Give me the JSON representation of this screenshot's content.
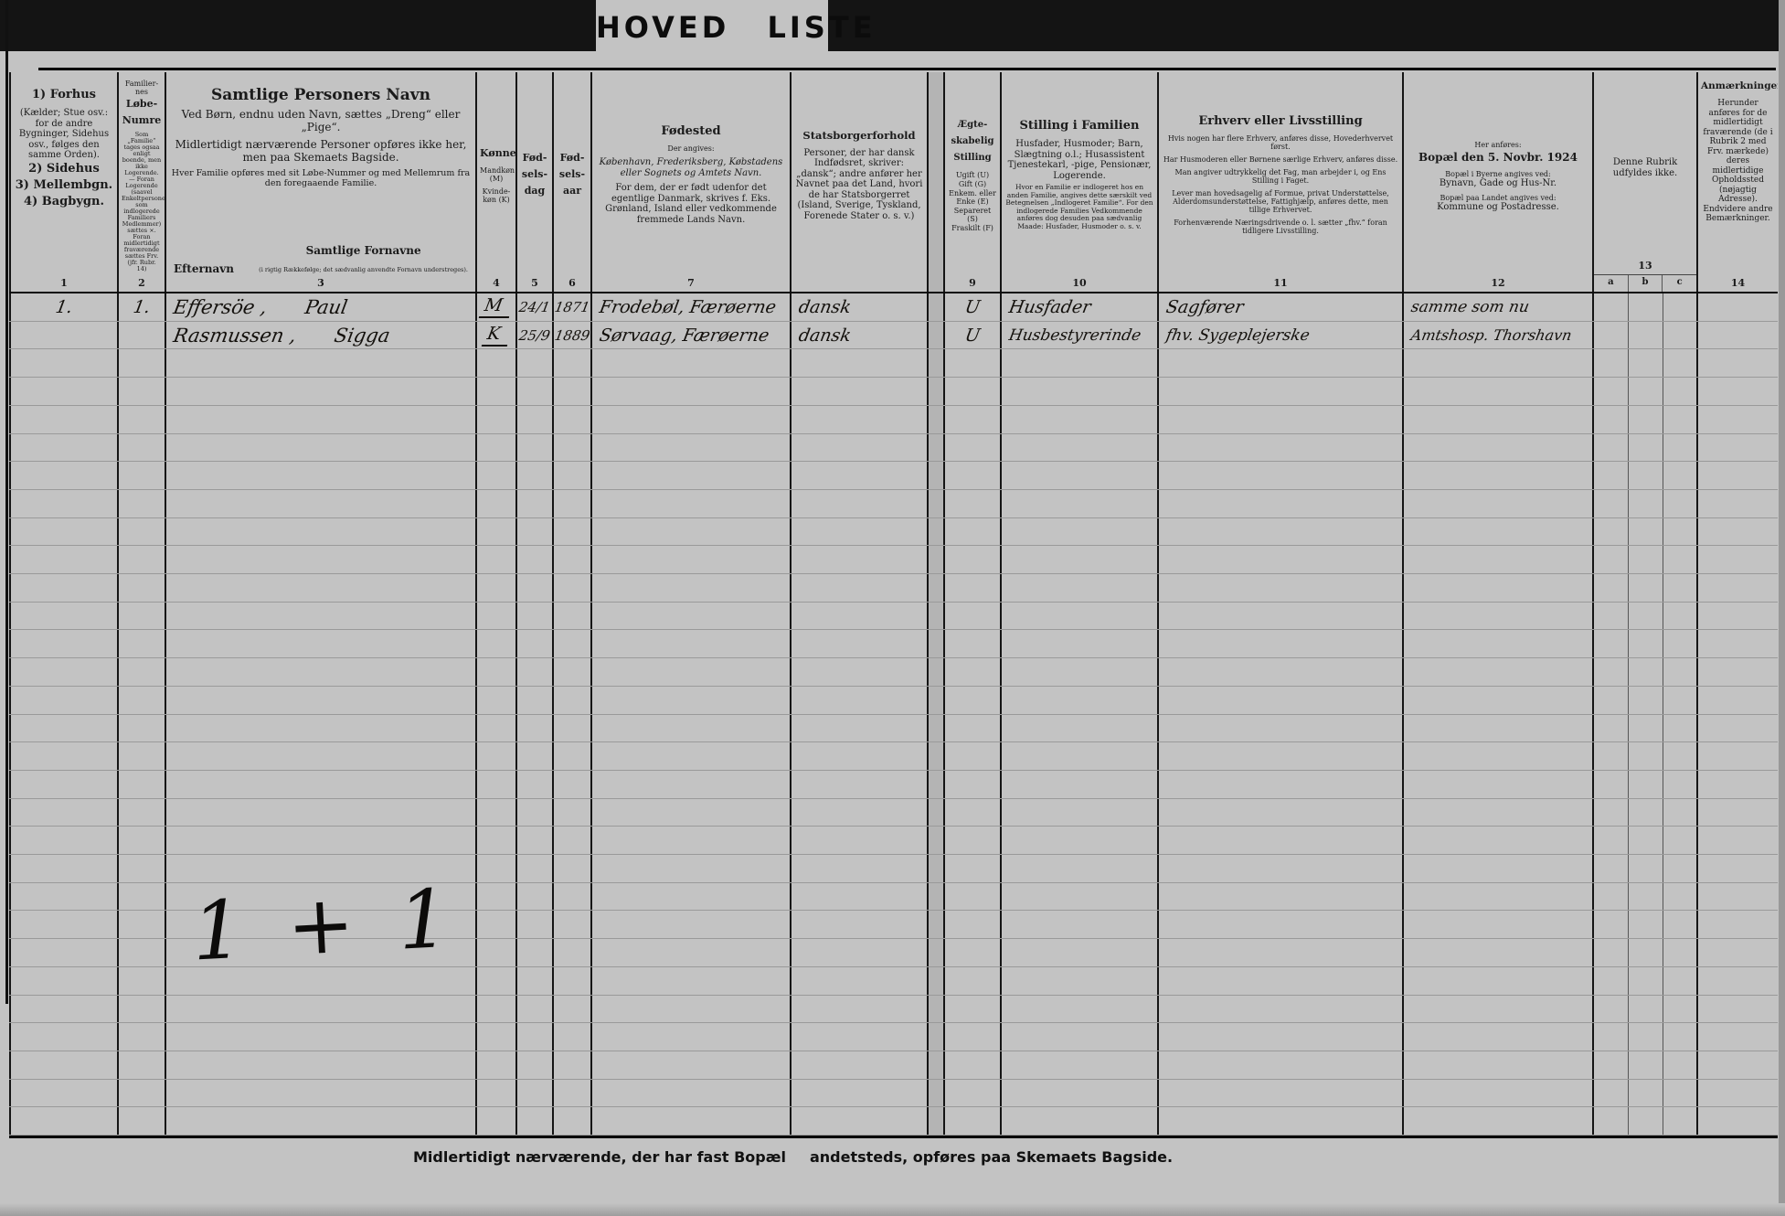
{
  "title": "HOVED LISTE",
  "footer": {
    "note1": "Midlertidigt nærværende, der har fast Bopæl",
    "note2": "andetsteds, opføres paa Skemaets Bagside.",
    "tally": "1 + 1"
  },
  "header": {
    "c1": {
      "num": "1",
      "l1": "1) Forhus",
      "body": "(Kælder; Stue osv.: for de andre Bygninger, Sidehus osv., følges den samme Orden).",
      "l2": "2) Sidehus",
      "l3": "3) Mellembgn.",
      "l4": "4) Bagbygn."
    },
    "c2": {
      "num": "2",
      "t1": "Familier-",
      "t2": "nes",
      "t3": "Løbe-",
      "t4": "Numre",
      "note": "Som „Familie“ tages ogsaa enligt boende, men ikke Logerende. — Foran Logerende (saavel Enkeltpersoner som indlogerede Familiers Medlemmer) sættes ×. Foran midlertidigt fraværende sættes Frv. (jfr. Rubr. 14)"
    },
    "c3": {
      "num": "3",
      "title": "Samtlige Personers Navn",
      "p1": "Ved Børn, endnu uden Navn, sættes „Dreng“ eller „Pige“.",
      "p2": "Midlertidigt nærværende Personer opføres ikke her, men paa Skemaets Bagside.",
      "p3": "Hver Familie opføres med sit Løbe-Nummer og med Mellemrum fra den foregaaende Familie.",
      "sub1": "Efternavn",
      "sub2": "Samtlige Fornavne",
      "sub2note": "(i rigtig Rækkefølge; det sædvanlig anvendte Fornavn understreges)."
    },
    "c4": {
      "num": "4",
      "title": "Kønnet",
      "p1": "Mandkøn (M)",
      "p2": "Kvinde-køn (K)"
    },
    "c5": {
      "num": "5",
      "t1": "Fød-",
      "t2": "sels-",
      "t3": "dag"
    },
    "c6": {
      "num": "6",
      "t1": "Fød-",
      "t2": "sels-",
      "t3": "aar"
    },
    "c7": {
      "num": "7",
      "title": "Fødested",
      "p0": "Der angives:",
      "p1": "København, Frederiksberg, Købstadens eller Sognets og Amtets Navn.",
      "p2": "For dem, der er født udenfor det egentlige Danmark, skrives f. Eks. Grønland, Island eller vedkommende fremmede Lands Navn."
    },
    "c8": {
      "num": "8",
      "title": "Statsborgerforhold",
      "p1": "Personer, der har dansk Indfødsret, skriver: „dansk“; andre anfører her Navnet paa det Land, hvori de har Statsborgerret (Island, Sverige, Tyskland, Forenede Stater o. s. v.)"
    },
    "c9": {
      "num": "9",
      "t1": "Ægte-",
      "t2": "skabelig",
      "t3": "Stilling",
      "p1": "Ugift (U)",
      "p2": "Gift (G)",
      "p3": "Enkem. eller Enke (E)",
      "p4": "Separeret (S)",
      "p5": "Fraskilt (F)"
    },
    "c10": {
      "num": "10",
      "title": "Stilling i Familien",
      "p1": "Husfader, Husmoder; Barn, Slægtning o.l.; Husassistent Tjenestekarl, -pige, Pensionær, Logerende.",
      "p2": "Hvor en Familie er indlogeret hos en anden Familie, angives dette særskilt ved Betegnelsen „Indlogeret Familie“. For den indlogerede Families Vedkommende anføres dog desuden paa sædvanlig Maade: Husfader, Husmoder o. s. v."
    },
    "c11": {
      "num": "11",
      "title": "Erhverv eller Livsstilling",
      "p1": "Hvis nogen har flere Erhverv, anføres disse, Hovederhvervet først.",
      "p2": "Har Husmoderen eller Børnene særlige Erhverv, anføres disse.",
      "p3": "Man angiver udtrykkelig det Fag, man arbejder i, og Ens Stilling i Faget.",
      "p4": "Lever man hovedsagelig af Formue, privat Understøttelse, Alderdomsunderstøttelse, Fattighjælp, anføres dette, men tillige Erhvervet.",
      "p5": "Forhenværende Næringsdrivende o. l. sætter „fhv.“ foran tidligere Livsstilling."
    },
    "c12": {
      "num": "12",
      "p0": "Her anføres:",
      "title": "Bopæl den 5. Novbr. 1924",
      "p1": "Bopæl i Byerne angives ved:",
      "p2": "Bynavn, Gade og Hus-Nr.",
      "p3": "Bopæl paa Landet angives ved:",
      "p4": "Kommune og Postadresse."
    },
    "c13": {
      "num": "13",
      "p1": "Denne Rubrik udfyldes ikke.",
      "a": "a",
      "b": "b",
      "c": "c"
    },
    "c14": {
      "num": "14",
      "title": "Anmærkninger",
      "p1": "Herunder anføres for de midlertidigt fraværende (de i Rubrik 2 med Frv. mærkede) deres midlertidige Opholdssted (nøjagtig Adresse). Endvidere andre Bemærkninger."
    }
  },
  "rows": [
    {
      "house": "1.",
      "family_no": "1.",
      "surname": "Effersöe ,",
      "forename": "Paul",
      "sex": "M",
      "birth_day": "24/1",
      "birth_year": "1871",
      "birthplace": "Frodebøl, Færøerne",
      "citizenship": "dansk",
      "marital": "U",
      "family_position": "Husfader",
      "occupation": "Sagfører",
      "residence": "samme som nu"
    },
    {
      "house": "",
      "family_no": "",
      "surname": "Rasmussen ,",
      "forename": "Sigga",
      "sex": "K",
      "birth_day": "25/9",
      "birth_year": "1889",
      "birthplace": "Sørvaag, Færøerne",
      "citizenship": "dansk",
      "marital": "U",
      "family_position": "Husbestyrerinde",
      "occupation": "fhv. Sygeplejerske",
      "residence": "Amtshosp. Thorshavn"
    }
  ]
}
